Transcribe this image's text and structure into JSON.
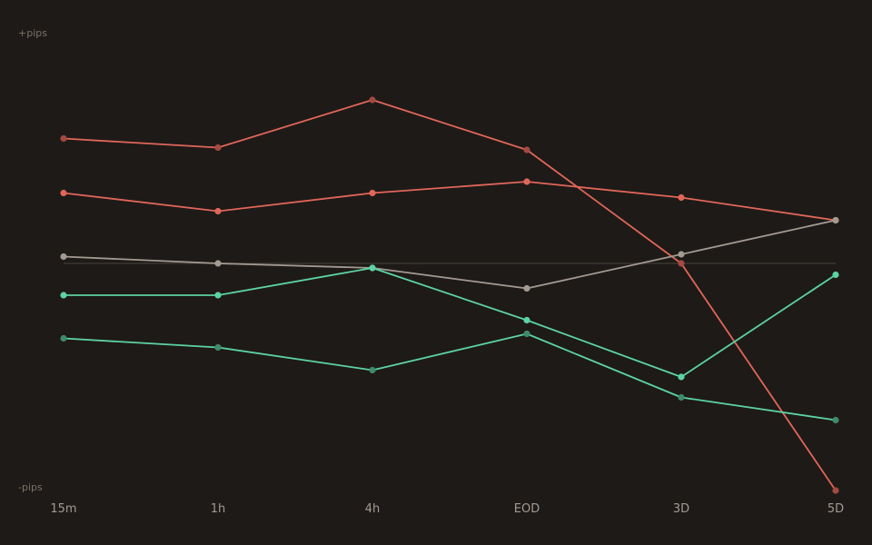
{
  "chart_data": {
    "type": "line",
    "categories": [
      "15m",
      "1h",
      "4h",
      "EOD",
      "3D",
      "5D"
    ],
    "y_top_label": "+pips",
    "y_bottom_label": "-pips",
    "ylim": [
      -100,
      100
    ],
    "zero_line": true,
    "series": [
      {
        "color": "#e0665a",
        "marker_color": "#a34a43",
        "values": [
          55,
          51,
          72,
          50,
          0,
          -100
        ]
      },
      {
        "color": "#e0665a",
        "marker_color": "#e0665a",
        "values": [
          31,
          23,
          31,
          36,
          29,
          19
        ]
      },
      {
        "color": "#a39a92",
        "marker_color": "#a39a92",
        "values": [
          3,
          0,
          -2,
          -11,
          4,
          19
        ]
      },
      {
        "color": "#5cd3a3",
        "marker_color": "#5cd3a3",
        "values": [
          -14,
          -14,
          -2,
          -25,
          -50,
          -5
        ]
      },
      {
        "color": "#5cd3a3",
        "marker_color": "#3f8a6b",
        "values": [
          -33,
          -37,
          -47,
          -31,
          -59,
          -69
        ]
      }
    ]
  }
}
